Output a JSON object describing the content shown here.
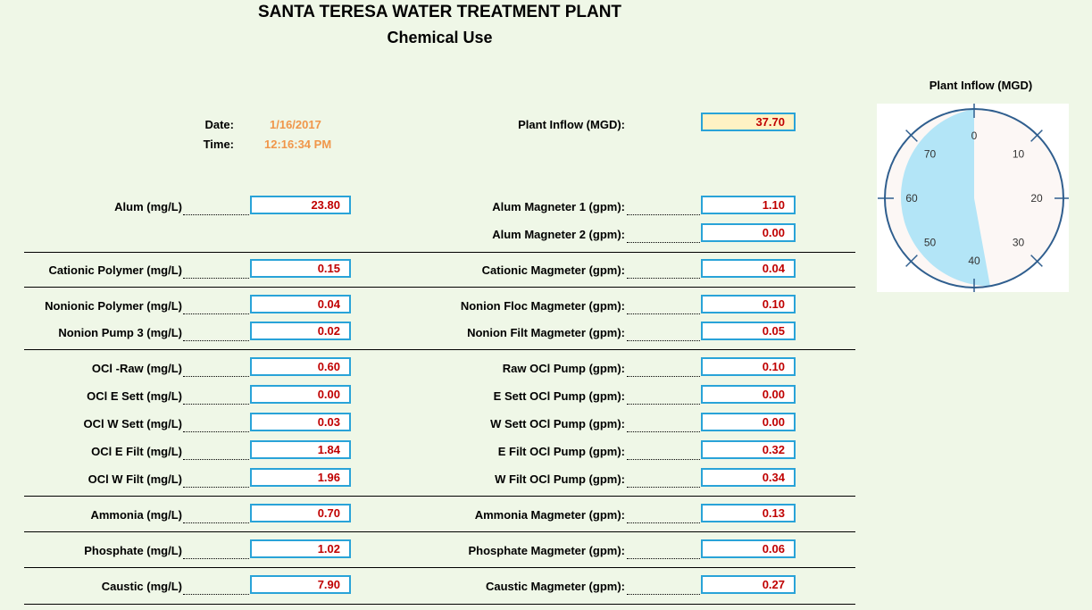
{
  "header": {
    "title": "SANTA TERESA WATER TREATMENT PLANT",
    "subtitle": "Chemical Use"
  },
  "info": {
    "date_label": "Date:",
    "date_value": "1/16/2017",
    "time_label": "Time:",
    "time_value": "12:16:34 PM",
    "inflow_label": "Plant Inflow (MGD):",
    "inflow_value": "37.70"
  },
  "left_rows": [
    {
      "label": "Alum (mg/L)",
      "value": "23.80"
    },
    {
      "label": "Cationic Polymer (mg/L)",
      "value": "0.15"
    },
    {
      "label": "Nonionic Polymer (mg/L)",
      "value": "0.04"
    },
    {
      "label": "Nonion Pump 3 (mg/L)",
      "value": "0.02"
    },
    {
      "label": "OCl -Raw (mg/L)",
      "value": "0.60"
    },
    {
      "label": "OCl E Sett (mg/L)",
      "value": "0.00"
    },
    {
      "label": "OCl W Sett (mg/L)",
      "value": "0.03"
    },
    {
      "label": "OCl E Filt (mg/L)",
      "value": "1.84"
    },
    {
      "label": "OCl W Filt (mg/L)",
      "value": "1.96"
    },
    {
      "label": "Ammonia (mg/L)",
      "value": "0.70"
    },
    {
      "label": "Phosphate (mg/L)",
      "value": "1.02"
    },
    {
      "label": "Caustic (mg/L)",
      "value": "7.90"
    }
  ],
  "right_rows": [
    {
      "label": "Alum Magneter 1 (gpm):",
      "value": "1.10"
    },
    {
      "label": "Alum Magneter 2 (gpm):",
      "value": "0.00"
    },
    {
      "label": "Cationic Magmeter (gpm):",
      "value": "0.04"
    },
    {
      "label": "Nonion Floc Magmeter (gpm):",
      "value": "0.10"
    },
    {
      "label": "Nonion Filt Magmeter (gpm):",
      "value": "0.05"
    },
    {
      "label": "Raw OCl Pump (gpm):",
      "value": "0.10"
    },
    {
      "label": "E Sett OCl Pump (gpm):",
      "value": "0.00"
    },
    {
      "label": "W Sett OCl Pump (gpm):",
      "value": "0.00"
    },
    {
      "label": "E Filt OCl Pump (gpm):",
      "value": "0.32"
    },
    {
      "label": "W Filt OCl Pump (gpm):",
      "value": "0.34"
    },
    {
      "label": "Ammonia Magmeter (gpm):",
      "value": "0.13"
    },
    {
      "label": "Phosphate Magmeter (gpm):",
      "value": "0.06"
    },
    {
      "label": "Caustic Magmeter (gpm):",
      "value": "0.27"
    }
  ],
  "gauge": {
    "title": "Plant Inflow (MGD)",
    "min": 0,
    "max": 80,
    "value": 37.7,
    "tick_labels": [
      "0",
      "10",
      "20",
      "30",
      "40",
      "50",
      "60",
      "70"
    ],
    "fill_color": "#b3e5f7",
    "bg_color": "#fcf7f5",
    "ring_color": "#2f5e8e"
  },
  "colors": {
    "value_text": "#c00000",
    "box_border": "#29a3d8",
    "info_text": "#f0964a",
    "inflow_box_bg": "#fff2c4"
  }
}
